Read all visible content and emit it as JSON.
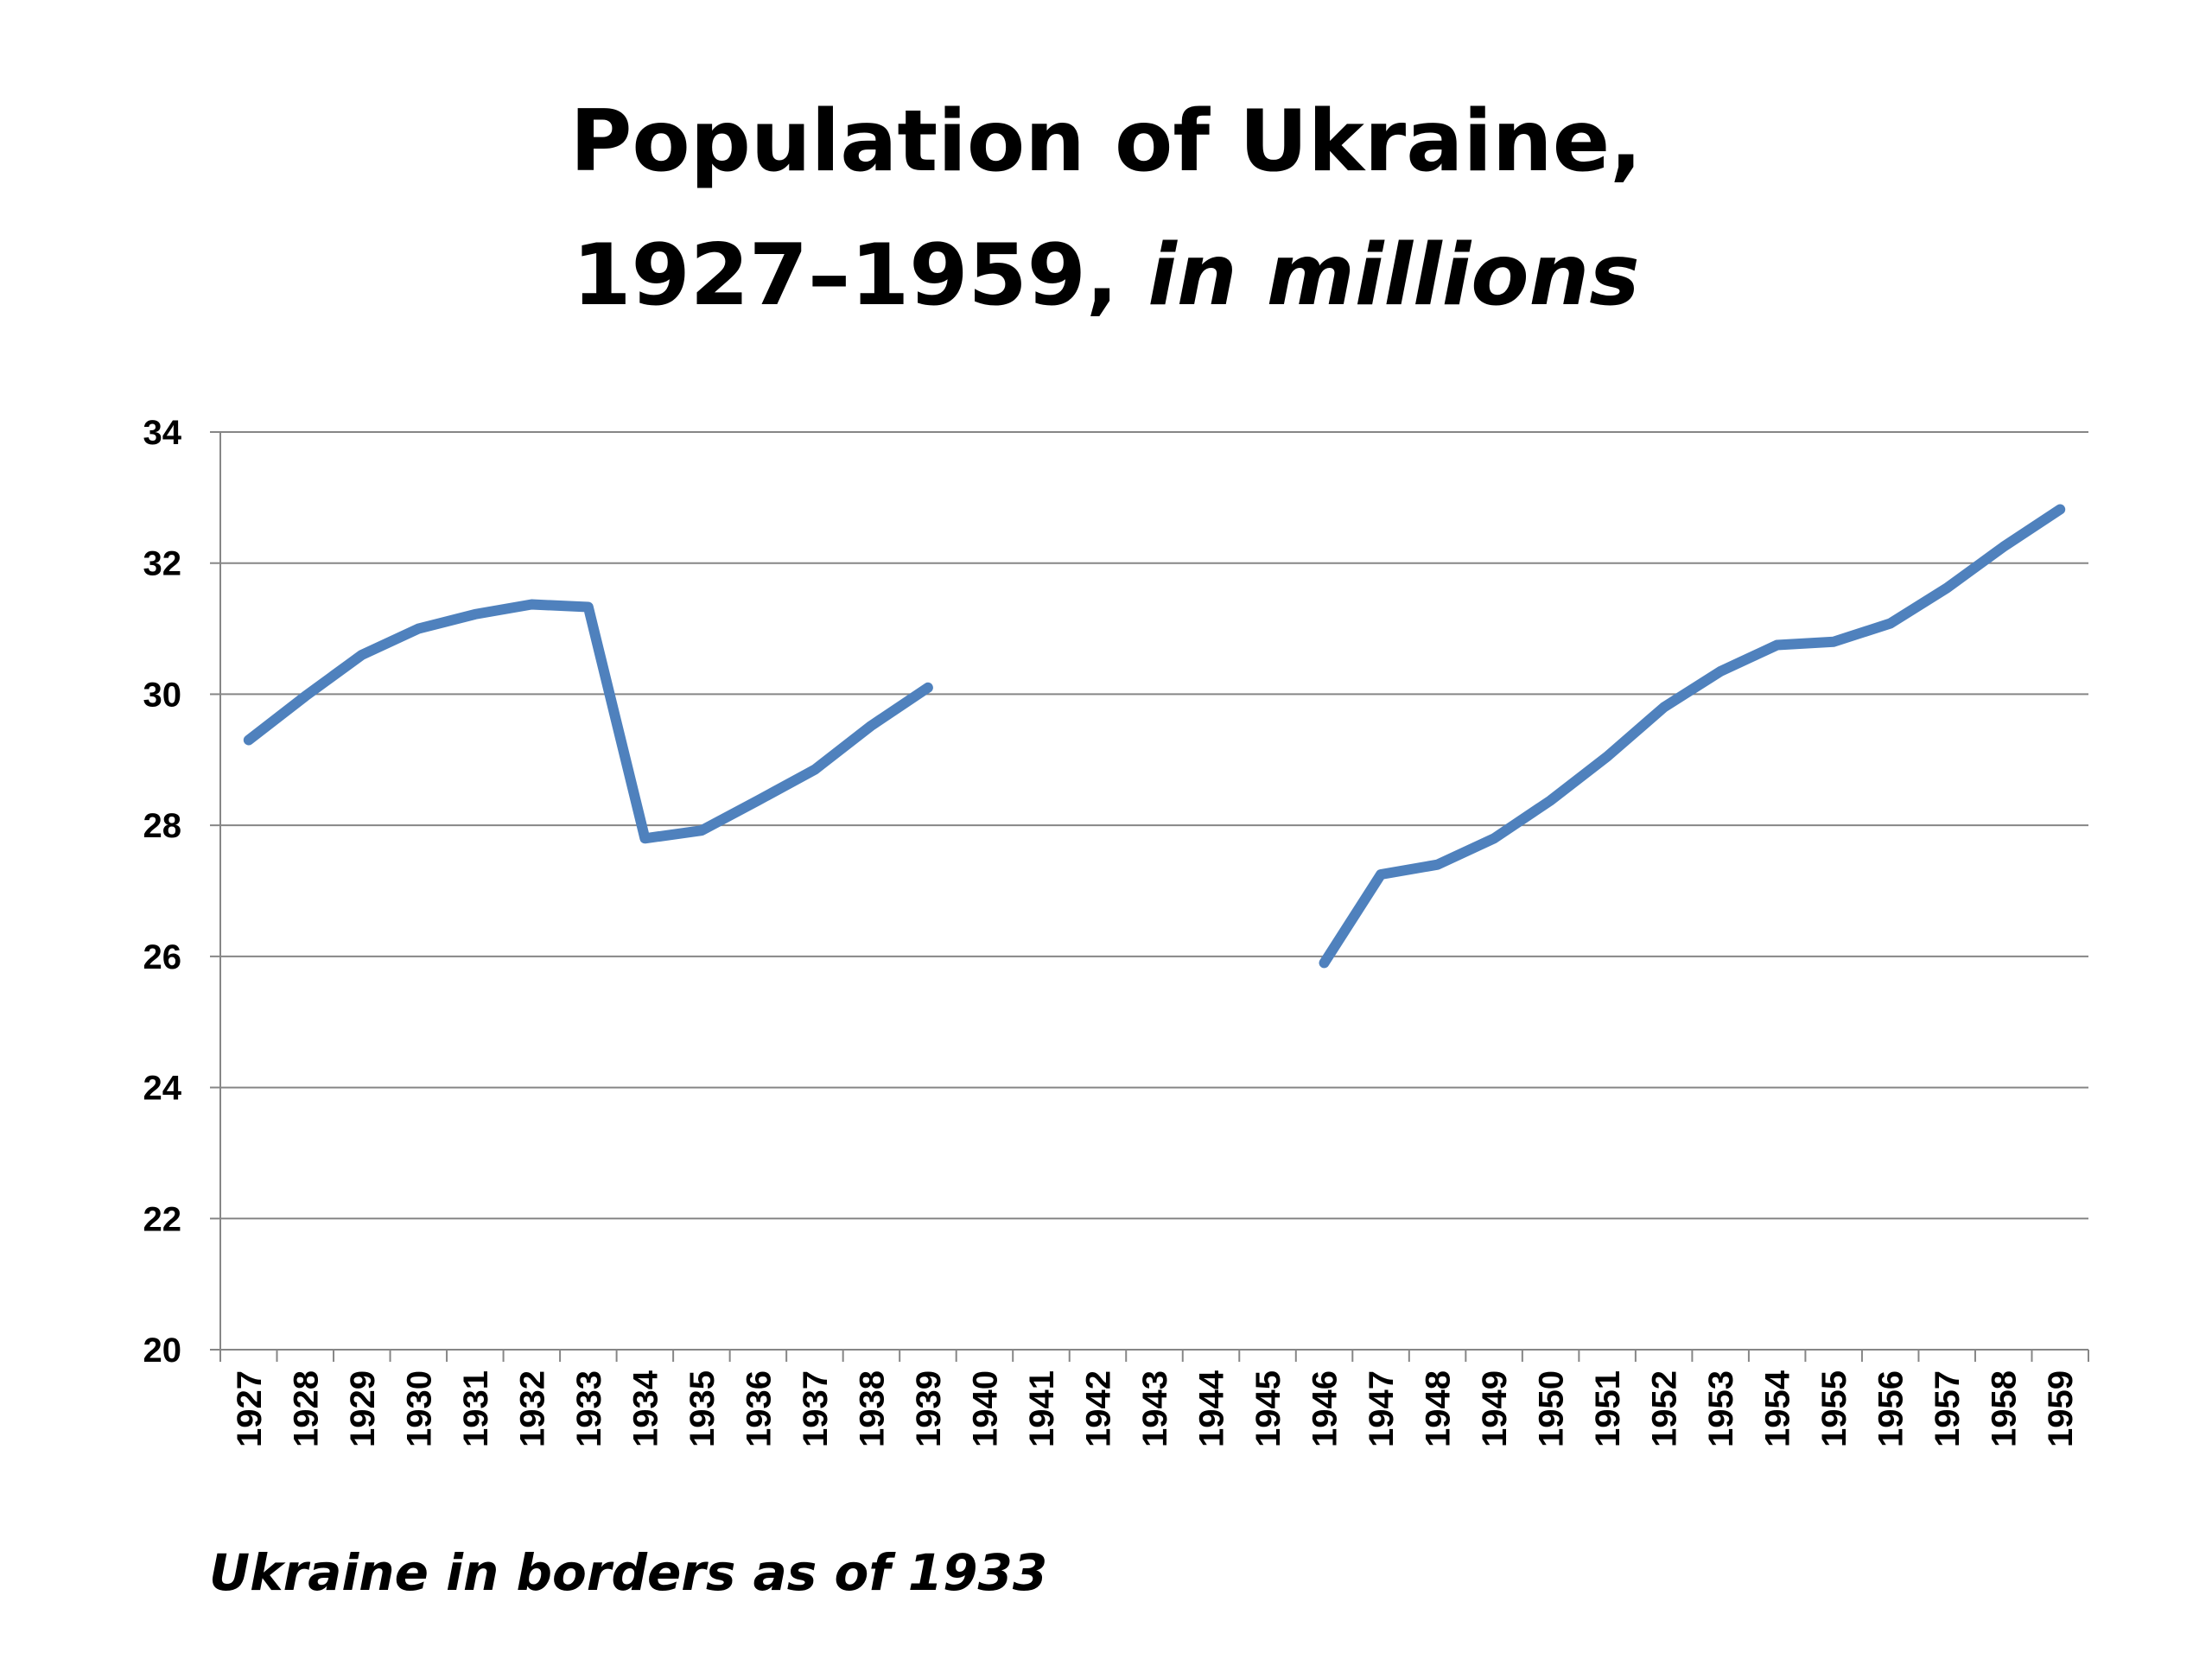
{
  "chart_data": {
    "type": "line",
    "title_line1": "Population of Ukraine,",
    "title_years": "1927–1959,",
    "title_unit": "in millions",
    "footnote": "Ukraine in borders as of 1933",
    "xlabel": "",
    "ylabel": "",
    "ylim": [
      20,
      34
    ],
    "yticks": [
      "20",
      "22",
      "24",
      "26",
      "28",
      "30",
      "32",
      "34"
    ],
    "grid": true,
    "categories": [
      "1927",
      "1928",
      "1929",
      "1930",
      "1931",
      "1932",
      "1933",
      "1934",
      "1935",
      "1936",
      "1937",
      "1938",
      "1939",
      "1940",
      "1941",
      "1942",
      "1943",
      "1944",
      "1945",
      "1946",
      "1947",
      "1948",
      "1949",
      "1950",
      "1951",
      "1952",
      "1953",
      "1954",
      "1955",
      "1956",
      "1957",
      "1958",
      "1959"
    ],
    "series": [
      {
        "color": "#4f81bd",
        "values": [
          29.3,
          29.97,
          30.6,
          31.0,
          31.22,
          31.37,
          31.33,
          27.8,
          27.92,
          28.38,
          28.85,
          29.52,
          30.1,
          null,
          null,
          null,
          null,
          null,
          null,
          25.9,
          27.25,
          27.4,
          27.8,
          28.38,
          29.05,
          29.8,
          30.35,
          30.75,
          30.8,
          31.08,
          31.62,
          32.25,
          32.82
        ]
      }
    ]
  }
}
